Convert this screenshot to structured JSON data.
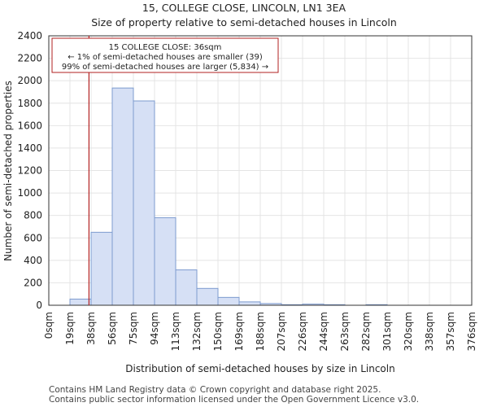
{
  "title_line1": "15, COLLEGE CLOSE, LINCOLN, LN1 3EA",
  "title_line2": "Size of property relative to semi-detached houses in Lincoln",
  "footer_line1": "Contains HM Land Registry data © Crown copyright and database right 2025.",
  "footer_line2": "Contains public sector information licensed under the Open Government Licence v3.0.",
  "colors": {
    "bar_fill": "#d6e0f5",
    "bar_stroke": "#7d9bcf",
    "marker": "#b22222",
    "grid": "#e4e4e4"
  },
  "chart_data": {
    "type": "bar",
    "title": "Size of property relative to semi-detached houses in Lincoln",
    "xlabel": "Distribution of semi-detached houses by size in Lincoln",
    "ylabel": "Number of semi-detached properties",
    "ylim": [
      0,
      2400
    ],
    "yticks": [
      0,
      200,
      400,
      600,
      800,
      1000,
      1200,
      1400,
      1600,
      1800,
      2000,
      2200,
      2400
    ],
    "grid": true,
    "bin_edges": [
      "0sqm",
      "19sqm",
      "38sqm",
      "56sqm",
      "75sqm",
      "94sqm",
      "113sqm",
      "132sqm",
      "150sqm",
      "169sqm",
      "188sqm",
      "207sqm",
      "226sqm",
      "244sqm",
      "263sqm",
      "282sqm",
      "301sqm",
      "320sqm",
      "338sqm",
      "357sqm",
      "376sqm"
    ],
    "values": [
      0,
      55,
      650,
      1935,
      1820,
      780,
      315,
      150,
      70,
      30,
      15,
      5,
      10,
      5,
      0,
      5,
      0,
      0,
      0,
      0
    ],
    "marker": {
      "value_bin_position": 1.9,
      "label_title": "15 COLLEGE CLOSE: 36sqm",
      "label_line1": "← 1% of semi-detached houses are smaller (39)",
      "label_line2": "99% of semi-detached houses are larger (5,834) →"
    }
  }
}
